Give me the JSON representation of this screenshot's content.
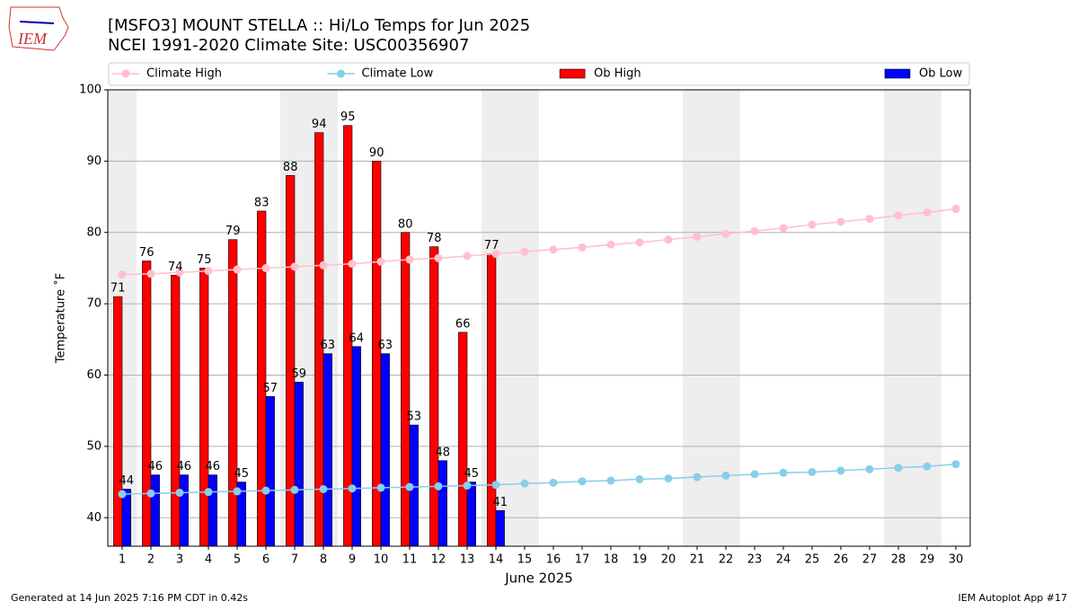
{
  "logo": "IEM",
  "chart_data": {
    "type": "bar",
    "title": "[MSFO3] MOUNT STELLA :: Hi/Lo Temps for Jun 2025",
    "subtitle": "NCEI 1991-2020 Climate Site: USC00356907",
    "xlabel": "June 2025",
    "ylabel": "Temperature ˚F",
    "x": [
      1,
      2,
      3,
      4,
      5,
      6,
      7,
      8,
      9,
      10,
      11,
      12,
      13,
      14,
      15,
      16,
      17,
      18,
      19,
      20,
      21,
      22,
      23,
      24,
      25,
      26,
      27,
      28,
      29,
      30
    ],
    "xlim": [
      0.5,
      30.5
    ],
    "xticks": [
      1,
      2,
      3,
      4,
      5,
      6,
      7,
      8,
      9,
      10,
      11,
      12,
      13,
      14,
      15,
      16,
      17,
      18,
      19,
      20,
      21,
      22,
      23,
      24,
      25,
      26,
      27,
      28,
      29,
      30
    ],
    "ylim": [
      36,
      100
    ],
    "yticks": [
      40,
      50,
      60,
      70,
      80,
      90,
      100
    ],
    "grid": true,
    "legend": "top",
    "series": [
      {
        "name": "Climate High",
        "type": "line",
        "color": "#ffc0cb",
        "values": [
          74.1,
          74.2,
          74.4,
          74.6,
          74.8,
          75.0,
          75.2,
          75.4,
          75.6,
          75.9,
          76.2,
          76.4,
          76.7,
          77.0,
          77.3,
          77.6,
          77.9,
          78.3,
          78.6,
          79.0,
          79.4,
          79.8,
          80.2,
          80.6,
          81.1,
          81.5,
          81.9,
          82.4,
          82.8,
          83.3
        ]
      },
      {
        "name": "Climate Low",
        "type": "line",
        "color": "#87ceeb",
        "values": [
          43.3,
          43.4,
          43.5,
          43.6,
          43.7,
          43.8,
          43.9,
          44.0,
          44.1,
          44.2,
          44.3,
          44.4,
          44.5,
          44.6,
          44.8,
          44.9,
          45.1,
          45.2,
          45.4,
          45.5,
          45.7,
          45.9,
          46.1,
          46.3,
          46.4,
          46.6,
          46.8,
          47.0,
          47.2,
          47.5
        ]
      },
      {
        "name": "Ob High",
        "type": "bar",
        "color": "#ff0000",
        "values": [
          71,
          76,
          74,
          75,
          79,
          83,
          88,
          94,
          95,
          90,
          80,
          78,
          66,
          77,
          null,
          null,
          null,
          null,
          null,
          null,
          null,
          null,
          null,
          null,
          null,
          null,
          null,
          null,
          null,
          null
        ]
      },
      {
        "name": "Ob Low",
        "type": "bar",
        "color": "#0000ff",
        "values": [
          44,
          46,
          46,
          46,
          45,
          57,
          59,
          63,
          64,
          63,
          53,
          48,
          45,
          41,
          null,
          null,
          null,
          null,
          null,
          null,
          null,
          null,
          null,
          null,
          null,
          null,
          null,
          null,
          null,
          null
        ]
      }
    ]
  },
  "footer": {
    "left": "Generated at 14 Jun 2025 7:16 PM CDT in 0.42s",
    "right": "IEM Autoplot App #17"
  }
}
